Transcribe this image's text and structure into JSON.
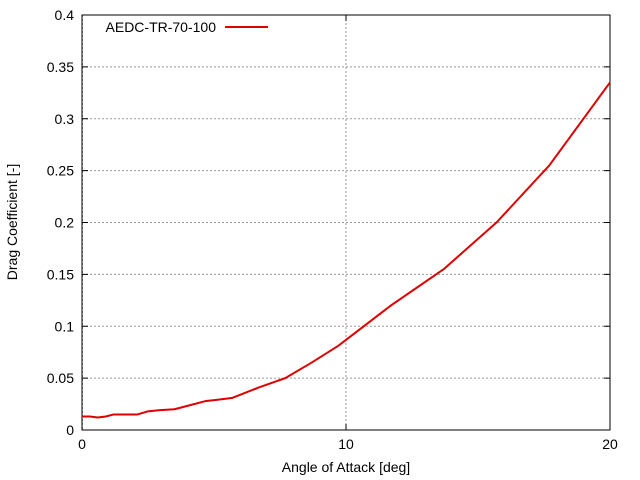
{
  "chart_data": {
    "type": "line",
    "title": "",
    "xlabel": "Angle of Attack [deg]",
    "ylabel": "Drag Coefficient [-]",
    "xlim": [
      0,
      20
    ],
    "ylim": [
      0,
      0.4
    ],
    "x_ticks": [
      0,
      10,
      20
    ],
    "x_tick_labels": [
      "0",
      "10",
      "20"
    ],
    "y_ticks": [
      0,
      0.05,
      0.1,
      0.15,
      0.2,
      0.25,
      0.3,
      0.35,
      0.4
    ],
    "y_tick_labels": [
      "0",
      "0.05",
      "0.1",
      "0.15",
      "0.2",
      "0.25",
      "0.3",
      "0.35",
      "0.4"
    ],
    "x_grid": [
      10
    ],
    "grid": true,
    "legend_position": "top-left",
    "series": [
      {
        "name": "AEDC-TR-70-100",
        "color": "#dd0000",
        "x": [
          0,
          0.3,
          0.6,
          0.9,
          1.2,
          1.6,
          2.1,
          2.5,
          2.9,
          3.5,
          4.1,
          4.7,
          5.1,
          5.7,
          6.7,
          7.7,
          8.7,
          9.7,
          11.7,
          13.7,
          15.7,
          17.7,
          20
        ],
        "y": [
          0.013,
          0.013,
          0.012,
          0.013,
          0.015,
          0.015,
          0.015,
          0.018,
          0.019,
          0.02,
          0.024,
          0.028,
          0.029,
          0.031,
          0.041,
          0.05,
          0.065,
          0.081,
          0.12,
          0.155,
          0.2,
          0.255,
          0.335
        ]
      }
    ]
  }
}
